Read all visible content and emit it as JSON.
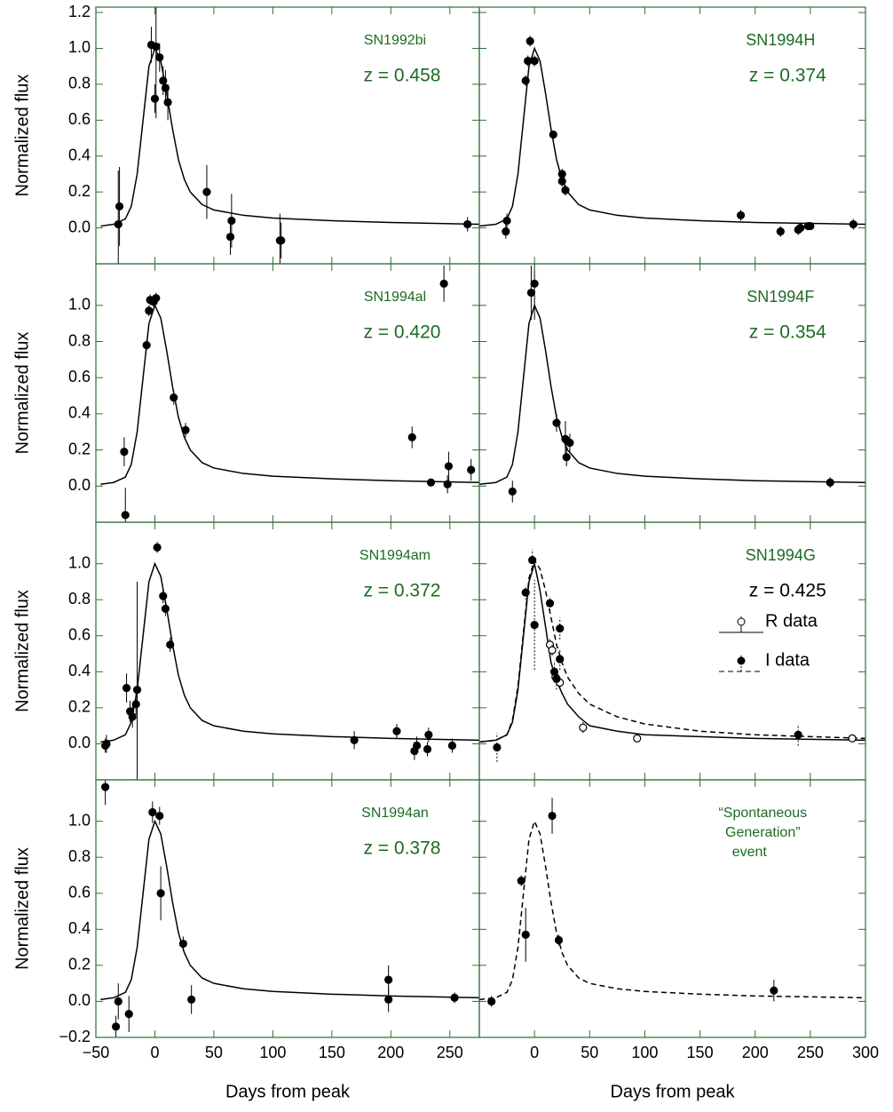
{
  "chart_data": [
    {
      "type": "scatter",
      "label": "SN1992bi",
      "z_label": "z = 0.458",
      "ylabel": "Normalized flux",
      "xlim": [
        -50,
        275
      ],
      "ylim": [
        -0.2,
        1.23
      ],
      "yticks": [
        {
          "value": 0,
          "label": "0.0"
        },
        {
          "value": 0.2,
          "label": "0.2"
        },
        {
          "value": 0.4,
          "label": "0.4"
        },
        {
          "value": 0.6,
          "label": "0.6"
        },
        {
          "value": 0.8,
          "label": "0.8"
        },
        {
          "value": 1,
          "label": "1.0"
        },
        {
          "value": 1.2,
          "label": "1.2"
        }
      ],
      "series": [
        {
          "marker": "filled",
          "color": "#000000",
          "x": [
            -31,
            -30,
            -3,
            0,
            1,
            4,
            7,
            9,
            11,
            44,
            64,
            65,
            106,
            107,
            265
          ],
          "values": [
            0.02,
            0.12,
            1.02,
            0.72,
            1.01,
            0.95,
            0.82,
            0.78,
            0.7,
            0.2,
            -0.05,
            0.04,
            -0.07,
            -0.07,
            0.02
          ],
          "errors": [
            0.3,
            0.22,
            0.1,
            0.08,
            0.4,
            0.08,
            0.08,
            0.1,
            0.1,
            0.15,
            0.1,
            0.15,
            0.15,
            0.1,
            0.04
          ]
        },
        {
          "line": "solid",
          "color": "#000000",
          "x": [
            -46,
            -35,
            -25,
            -20,
            -15,
            -10,
            -5,
            0,
            5,
            10,
            15,
            20,
            25,
            30,
            40,
            50,
            75,
            100,
            150,
            200,
            275
          ],
          "values": [
            0.01,
            0.02,
            0.05,
            0.12,
            0.3,
            0.6,
            0.9,
            1.0,
            0.93,
            0.75,
            0.55,
            0.38,
            0.27,
            0.2,
            0.13,
            0.1,
            0.07,
            0.055,
            0.04,
            0.03,
            0.02
          ]
        }
      ]
    },
    {
      "type": "scatter",
      "label": "SN1994H",
      "z_label": "z = 0.374",
      "xlim": [
        -50,
        300
      ],
      "ylim": [
        -0.2,
        1.23
      ],
      "series": [
        {
          "marker": "filled",
          "color": "#000000",
          "x": [
            -26,
            -25,
            -8,
            -6,
            -4,
            0,
            17,
            25,
            25,
            28,
            187,
            223,
            239,
            241,
            248,
            250,
            289
          ],
          "values": [
            -0.02,
            0.04,
            0.82,
            0.93,
            1.04,
            0.93,
            0.52,
            0.3,
            0.26,
            0.21,
            0.07,
            -0.02,
            -0.01,
            0.0,
            0.01,
            0.01,
            0.02
          ],
          "errors": [
            0.04,
            0.04,
            0.03,
            0.03,
            0.03,
            0.03,
            0.02,
            0.03,
            0.03,
            0.03,
            0.03,
            0.03,
            0.03,
            0.03,
            0.02,
            0.02,
            0.03
          ]
        },
        {
          "line": "solid",
          "color": "#000000",
          "x": [
            -50,
            -35,
            -25,
            -20,
            -15,
            -10,
            -5,
            0,
            5,
            10,
            15,
            20,
            25,
            30,
            40,
            50,
            75,
            100,
            150,
            200,
            300
          ],
          "values": [
            0.01,
            0.02,
            0.05,
            0.12,
            0.3,
            0.6,
            0.9,
            1.0,
            0.93,
            0.75,
            0.55,
            0.38,
            0.27,
            0.2,
            0.13,
            0.1,
            0.07,
            0.055,
            0.04,
            0.03,
            0.02
          ]
        }
      ]
    },
    {
      "type": "scatter",
      "label": "SN1994al",
      "z_label": "z = 0.420",
      "ylabel": "Normalized flux",
      "xlim": [
        -50,
        275
      ],
      "ylim": [
        -0.2,
        1.23
      ],
      "yticks": [
        {
          "value": 0,
          "label": "0.0"
        },
        {
          "value": 0.2,
          "label": "0.2"
        },
        {
          "value": 0.4,
          "label": "0.4"
        },
        {
          "value": 0.6,
          "label": "0.6"
        },
        {
          "value": 0.8,
          "label": "0.8"
        },
        {
          "value": 1,
          "label": "1.0"
        }
      ],
      "series": [
        {
          "marker": "filled",
          "color": "#000000",
          "x": [
            -26,
            -25,
            -7,
            -5,
            -4,
            -1,
            1,
            16,
            26,
            218,
            234,
            245,
            248,
            249,
            268
          ],
          "values": [
            0.19,
            -0.16,
            0.78,
            0.97,
            1.03,
            1.02,
            1.04,
            0.49,
            0.31,
            0.27,
            0.02,
            1.12,
            0.01,
            0.11,
            0.09
          ],
          "errors": [
            0.08,
            0.15,
            0.03,
            0.03,
            0.03,
            0.03,
            0.03,
            0.04,
            0.04,
            0.06,
            0.02,
            0.1,
            0.05,
            0.08,
            0.06
          ]
        },
        {
          "line": "solid",
          "color": "#000000",
          "x": [
            -46,
            -35,
            -25,
            -20,
            -15,
            -10,
            -5,
            0,
            5,
            10,
            15,
            20,
            25,
            30,
            40,
            50,
            75,
            100,
            150,
            200,
            275
          ],
          "values": [
            0.01,
            0.02,
            0.05,
            0.12,
            0.3,
            0.6,
            0.9,
            1.0,
            0.93,
            0.75,
            0.55,
            0.38,
            0.27,
            0.2,
            0.13,
            0.1,
            0.07,
            0.055,
            0.04,
            0.03,
            0.02
          ]
        }
      ]
    },
    {
      "type": "scatter",
      "label": "SN1994F",
      "z_label": "z = 0.354",
      "xlim": [
        -50,
        300
      ],
      "ylim": [
        -0.2,
        1.23
      ],
      "series": [
        {
          "marker": "filled",
          "color": "#000000",
          "x": [
            -20,
            -3,
            0,
            20,
            28,
            29,
            32,
            268
          ],
          "values": [
            -0.03,
            1.07,
            1.12,
            0.35,
            0.26,
            0.16,
            0.24,
            0.02
          ],
          "errors": [
            0.06,
            0.15,
            0.2,
            0.05,
            0.1,
            0.05,
            0.05,
            0.03
          ]
        },
        {
          "line": "solid",
          "color": "#000000",
          "x": [
            -50,
            -35,
            -25,
            -20,
            -15,
            -10,
            -5,
            0,
            5,
            10,
            15,
            20,
            25,
            30,
            40,
            50,
            75,
            100,
            150,
            200,
            300
          ],
          "values": [
            0.01,
            0.02,
            0.05,
            0.12,
            0.3,
            0.6,
            0.9,
            1.0,
            0.93,
            0.75,
            0.55,
            0.38,
            0.27,
            0.2,
            0.13,
            0.1,
            0.07,
            0.055,
            0.04,
            0.03,
            0.02
          ]
        }
      ]
    },
    {
      "type": "scatter",
      "label": "SN1994am",
      "z_label": "z = 0.372",
      "ylabel": "Normalized flux",
      "xlim": [
        -50,
        275
      ],
      "ylim": [
        -0.2,
        1.23
      ],
      "yticks": [
        {
          "value": 0,
          "label": "0.0"
        },
        {
          "value": 0.2,
          "label": "0.2"
        },
        {
          "value": 0.4,
          "label": "0.4"
        },
        {
          "value": 0.6,
          "label": "0.6"
        },
        {
          "value": 0.8,
          "label": "0.8"
        },
        {
          "value": 1,
          "label": "1.0"
        }
      ],
      "series": [
        {
          "marker": "filled",
          "color": "#000000",
          "x": [
            -42,
            -41,
            -24,
            -21,
            -19,
            -16,
            -15,
            2,
            7,
            9,
            13,
            169,
            205,
            220,
            222,
            231,
            232,
            252
          ],
          "values": [
            -0.01,
            0.0,
            0.31,
            0.18,
            0.15,
            0.22,
            0.3,
            1.09,
            0.82,
            0.75,
            0.55,
            0.02,
            0.07,
            -0.04,
            -0.01,
            -0.03,
            0.05,
            -0.01
          ],
          "errors": [
            0.04,
            0.05,
            0.08,
            0.06,
            0.06,
            0.06,
            0.6,
            0.03,
            0.04,
            0.04,
            0.04,
            0.05,
            0.04,
            0.05,
            0.05,
            0.04,
            0.04,
            0.04
          ]
        },
        {
          "line": "solid",
          "color": "#000000",
          "x": [
            -46,
            -35,
            -25,
            -20,
            -15,
            -10,
            -5,
            0,
            5,
            10,
            15,
            20,
            25,
            30,
            40,
            50,
            75,
            100,
            150,
            200,
            275
          ],
          "values": [
            0.01,
            0.02,
            0.05,
            0.12,
            0.3,
            0.6,
            0.9,
            1.0,
            0.93,
            0.75,
            0.55,
            0.38,
            0.27,
            0.2,
            0.13,
            0.1,
            0.07,
            0.055,
            0.04,
            0.03,
            0.02
          ]
        }
      ]
    },
    {
      "type": "scatter",
      "label": "SN1994G",
      "z_label": "z = 0.425",
      "legend": "right",
      "xlim": [
        -50,
        300
      ],
      "ylim": [
        -0.2,
        1.23
      ],
      "series": [
        {
          "name": "R data",
          "marker": "open",
          "line": "solid",
          "color": "#000000",
          "x": [
            14,
            16,
            19,
            23,
            44,
            93,
            288
          ],
          "values": [
            0.55,
            0.52,
            0.37,
            0.34,
            0.09,
            0.03,
            0.03
          ],
          "errors": [
            0.03,
            0.03,
            0.03,
            0.03,
            0.03,
            0.02,
            0.02
          ]
        },
        {
          "name": "I data",
          "marker": "filled",
          "line": "dashed",
          "color": "#000000",
          "x": [
            -34,
            -8,
            -2,
            0,
            14,
            18,
            20,
            23,
            23,
            239
          ],
          "values": [
            -0.02,
            0.84,
            1.02,
            0.66,
            0.78,
            0.4,
            0.36,
            0.64,
            0.47,
            0.05
          ],
          "errors": [
            0.08,
            0.04,
            0.06,
            0.25,
            0.04,
            0.06,
            0.06,
            0.06,
            0.06,
            0.06
          ]
        },
        {
          "line": "solid",
          "color": "#000000",
          "x": [
            -50,
            -35,
            -25,
            -20,
            -15,
            -10,
            -5,
            0,
            5,
            10,
            15,
            20,
            25,
            30,
            40,
            50,
            75,
            100,
            150,
            200,
            300
          ],
          "values": [
            0.01,
            0.02,
            0.05,
            0.12,
            0.3,
            0.6,
            0.9,
            1.0,
            0.85,
            0.65,
            0.45,
            0.35,
            0.28,
            0.22,
            0.15,
            0.1,
            0.07,
            0.05,
            0.04,
            0.03,
            0.02
          ]
        },
        {
          "line": "dashed",
          "color": "#000000",
          "x": [
            -50,
            -35,
            -25,
            -20,
            -15,
            -10,
            -5,
            0,
            5,
            10,
            15,
            20,
            25,
            30,
            40,
            50,
            75,
            100,
            150,
            200,
            250,
            300
          ],
          "values": [
            0.01,
            0.02,
            0.05,
            0.13,
            0.32,
            0.62,
            0.92,
            1.02,
            0.97,
            0.85,
            0.7,
            0.55,
            0.45,
            0.37,
            0.28,
            0.22,
            0.15,
            0.11,
            0.07,
            0.05,
            0.04,
            0.03
          ]
        }
      ]
    },
    {
      "type": "scatter",
      "label": "SN1994an",
      "z_label": "z = 0.378",
      "ylabel": "Normalized flux",
      "xlabel": "Days from peak",
      "xlim": [
        -50,
        275
      ],
      "ylim": [
        -0.2,
        1.23
      ],
      "yticks": [
        {
          "value": -0.2,
          "label": "−0.2"
        },
        {
          "value": 0,
          "label": "0.0"
        },
        {
          "value": 0.2,
          "label": "0.2"
        },
        {
          "value": 0.4,
          "label": "0.4"
        },
        {
          "value": 0.6,
          "label": "0.6"
        },
        {
          "value": 0.8,
          "label": "0.8"
        },
        {
          "value": 1,
          "label": "1.0"
        }
      ],
      "xticks": [
        {
          "value": -50,
          "label": "−50"
        },
        0,
        50,
        100,
        150,
        200,
        250
      ],
      "series": [
        {
          "marker": "filled",
          "color": "#000000",
          "x": [
            -42,
            -33,
            -31,
            -22,
            -2,
            4,
            5,
            24,
            31,
            198,
            198,
            254
          ],
          "values": [
            1.19,
            -0.14,
            0.0,
            -0.07,
            1.05,
            1.03,
            0.6,
            0.32,
            0.01,
            0.01,
            0.12,
            0.02
          ],
          "errors": [
            0.1,
            0.06,
            0.1,
            0.1,
            0.06,
            0.05,
            0.15,
            0.04,
            0.08,
            0.07,
            0.08,
            0.03
          ]
        },
        {
          "line": "solid",
          "color": "#000000",
          "x": [
            -46,
            -35,
            -25,
            -20,
            -15,
            -10,
            -5,
            0,
            5,
            10,
            15,
            20,
            25,
            30,
            40,
            50,
            75,
            100,
            150,
            200,
            275
          ],
          "values": [
            0.01,
            0.02,
            0.05,
            0.12,
            0.3,
            0.6,
            0.9,
            1.0,
            0.93,
            0.75,
            0.55,
            0.38,
            0.27,
            0.2,
            0.13,
            0.1,
            0.07,
            0.055,
            0.04,
            0.03,
            0.02
          ]
        }
      ]
    },
    {
      "type": "scatter",
      "label_lines": [
        "“Spontaneous",
        "Generation”",
        "event"
      ],
      "xlabel": "Days from peak",
      "xlim": [
        -50,
        300
      ],
      "ylim": [
        -0.2,
        1.23
      ],
      "xticks": [
        0,
        50,
        100,
        150,
        200,
        250,
        300
      ],
      "series": [
        {
          "marker": "filled",
          "color": "#000000",
          "x": [
            -39,
            -12,
            -8,
            16,
            22,
            217
          ],
          "values": [
            0.0,
            0.67,
            0.37,
            1.03,
            0.34,
            0.06
          ],
          "errors": [
            0.03,
            0.03,
            0.15,
            0.1,
            0.03,
            0.06
          ]
        },
        {
          "line": "dashed",
          "color": "#000000",
          "x": [
            -50,
            -35,
            -25,
            -20,
            -15,
            -10,
            -5,
            0,
            5,
            10,
            15,
            20,
            25,
            30,
            40,
            50,
            75,
            100,
            150,
            200,
            300
          ],
          "values": [
            0.01,
            0.02,
            0.05,
            0.12,
            0.3,
            0.6,
            0.9,
            1.0,
            0.93,
            0.75,
            0.55,
            0.38,
            0.27,
            0.2,
            0.13,
            0.1,
            0.07,
            0.055,
            0.04,
            0.03,
            0.02
          ]
        }
      ]
    }
  ]
}
